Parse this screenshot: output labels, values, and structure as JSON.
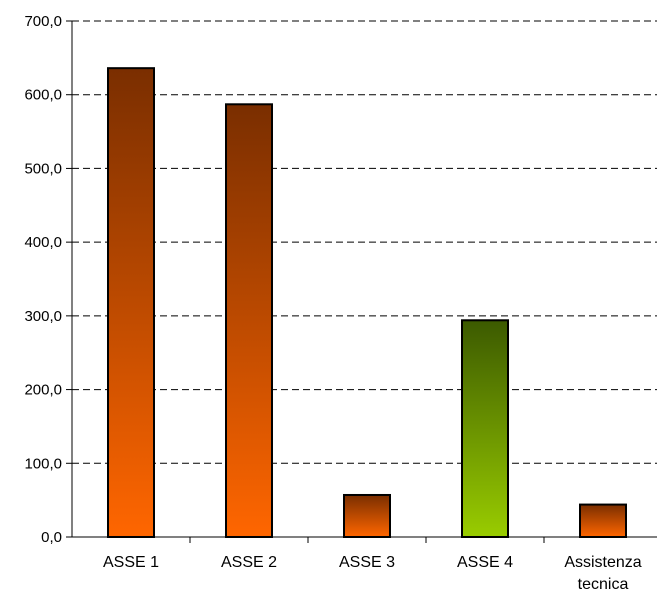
{
  "chart_data": {
    "type": "bar",
    "title": "",
    "xlabel": "",
    "ylabel": "",
    "categories": [
      "ASSE 1",
      "ASSE 2",
      "ASSE 3",
      "ASSE 4",
      "Assistenza tecnica"
    ],
    "values": [
      636,
      587,
      57,
      294,
      44
    ],
    "ylim": [
      0,
      700
    ],
    "yticks": [
      0,
      100,
      200,
      300,
      400,
      500,
      600,
      700
    ],
    "ytick_labels": [
      "0,0",
      "100,0",
      "200,0",
      "300,0",
      "400,0",
      "500,0",
      "600,0",
      "700,0"
    ],
    "grid": "horizontal dashed",
    "legend": "none",
    "bar_colors": [
      {
        "top": "#7a2e00",
        "bottom": "#ff6600"
      },
      {
        "top": "#7a2e00",
        "bottom": "#ff6600"
      },
      {
        "top": "#7a2e00",
        "bottom": "#ff6600"
      },
      {
        "top": "#3c5a00",
        "bottom": "#99cc00"
      },
      {
        "top": "#7a2e00",
        "bottom": "#ff6600"
      }
    ]
  }
}
